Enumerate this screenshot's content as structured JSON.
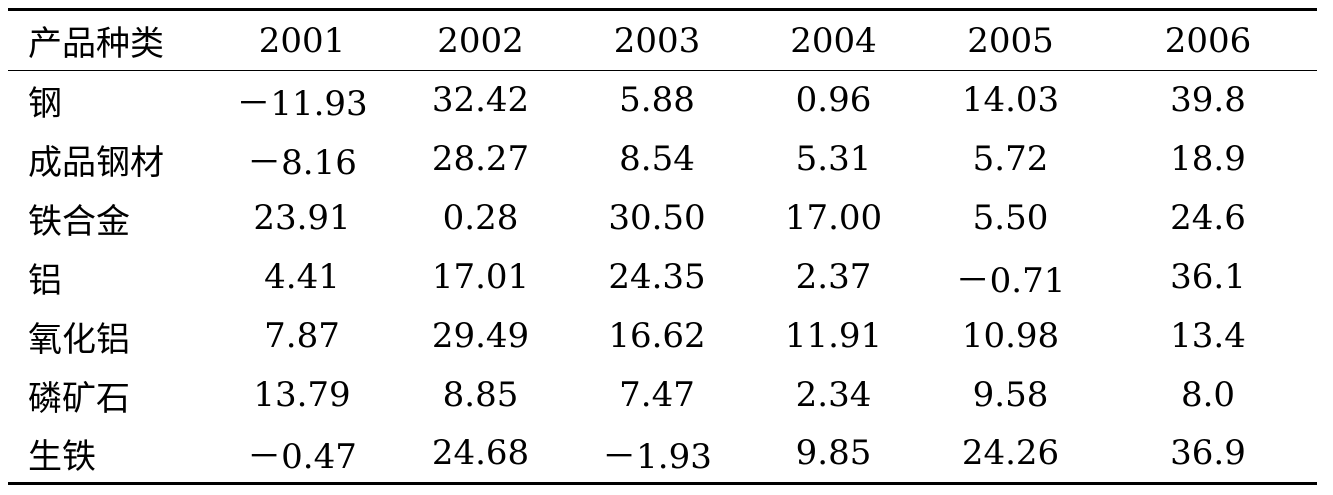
{
  "table": {
    "headers": [
      "产品种类",
      "2001",
      "2002",
      "2003",
      "2004",
      "2005",
      "2006"
    ],
    "rows": [
      [
        "钢",
        "－11.93",
        "32.42",
        "5.88",
        "0.96",
        "14.03",
        "39.8"
      ],
      [
        "成品钢材",
        "－8.16",
        "28.27",
        "8.54",
        "5.31",
        "5.72",
        "18.9"
      ],
      [
        "铁合金",
        "23.91",
        "0.28",
        "30.50",
        "17.00",
        "5.50",
        "24.6"
      ],
      [
        "铝",
        "4.41",
        "17.01",
        "24.35",
        "2.37",
        "－0.71",
        "36.1"
      ],
      [
        "氧化铝",
        "7.87",
        "29.49",
        "16.62",
        "11.91",
        "10.98",
        "13.4"
      ],
      [
        "磷矿石",
        "13.79",
        "8.85",
        "7.47",
        "2.34",
        "9.58",
        "8.0"
      ],
      [
        "生铁",
        "－0.47",
        "24.68",
        "－1.93",
        "9.85",
        "24.26",
        "36.9"
      ]
    ]
  }
}
